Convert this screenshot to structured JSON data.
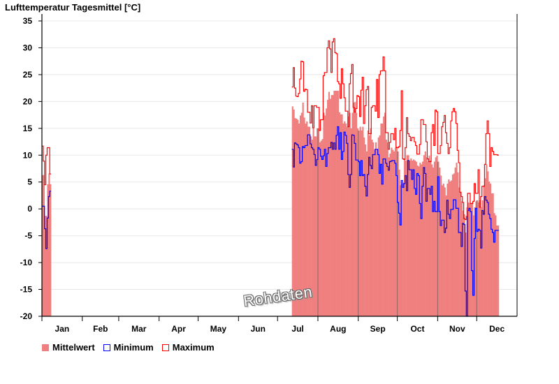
{
  "chart_data": {
    "type": "bar",
    "title": "Lufttemperatur Tagesmittel [°C]",
    "xlabel": "",
    "ylabel": "",
    "ylim": [
      -20,
      35
    ],
    "yticks": [
      35,
      30,
      25,
      20,
      15,
      10,
      5,
      0,
      -5,
      -10,
      -15,
      -20
    ],
    "grid": true,
    "months": [
      "Jan",
      "Feb",
      "Mar",
      "Apr",
      "May",
      "Jun",
      "Jul",
      "Aug",
      "Sep",
      "Oct",
      "Nov",
      "Dec"
    ],
    "month_lengths": [
      31,
      28,
      31,
      30,
      31,
      30,
      31,
      31,
      30,
      31,
      30,
      31
    ],
    "watermark": "Rohdaten",
    "legend_position": "bottom-left",
    "series": [
      {
        "name": "Mittelwert",
        "kind": "bar",
        "color": "#f08080",
        "segments": [
          {
            "start_day_of_year": 1,
            "values": [
              6.3,
              6.3,
              -1.3,
              -1.3,
              4.6,
              6.6,
              4.6
            ]
          },
          {
            "start_day_of_year": 193,
            "values": [
              19.1,
              18.5,
              16.9,
              16.8,
              16.6,
              15.9,
              17.4,
              17.9,
              19.8,
              17,
              15.9,
              16.3,
              15.3,
              15.3,
              13.5,
              12.9,
              15,
              13.5,
              13.5,
              15,
              15,
              12.4,
              12.7,
              13,
              17.9,
              17.4,
              18.7,
              20.3,
              21.8,
              20.5,
              21.2,
              21.2,
              22,
              22,
              22,
              22,
              18,
              17.6,
              17.6,
              15.9,
              16.3,
              15.9,
              15.3,
              17.2,
              17.9,
              15,
              17.9,
              19.8,
              19.9,
              17.9,
              15,
              14.6,
              15.3,
              14.6,
              15.3,
              13.3,
              12,
              10.7,
              14.6,
              13.7,
              15,
              12.9,
              12.4,
              11.1,
              12.4,
              11.1,
              13.3,
              13.7,
              15.9,
              15.9,
              17.2,
              17.9,
              12.9,
              12.4,
              9.6,
              10.3,
              11.4,
              11,
              10.7,
              11.4,
              11.6,
              10.7,
              7.3,
              4.4,
              4.7,
              4.9,
              9.4,
              9,
              10,
              10,
              9,
              9.4,
              9,
              9.2,
              9,
              8.8,
              8.1,
              7.9,
              8.6,
              8.3,
              8.8,
              10,
              10.7,
              9.6,
              8.8,
              9.9,
              9,
              8.3,
              7.7,
              8.8,
              9.6,
              9.9,
              8.8,
              7.7,
              6.2,
              4.4,
              4.7,
              4,
              2.5,
              4.7,
              5.5,
              5.1,
              5.3,
              6.4,
              6.6,
              7.7,
              8.6,
              6.8,
              4,
              3.1,
              1.4,
              -0.3,
              -1,
              -4.4,
              0.3,
              1.2,
              1,
              1,
              1.2,
              -1.2,
              0.3,
              1.4,
              1.6,
              1.2,
              1.6,
              0.3,
              1.6,
              4.4,
              5.7,
              8.3,
              7,
              5.1,
              4.7,
              2.9,
              2.9,
              -0.8,
              -1.2,
              -3.1,
              -3.1
            ]
          }
        ]
      },
      {
        "name": "Minimum",
        "kind": "step",
        "color": "#0000ff",
        "segments": [
          {
            "start_day_of_year": 1,
            "values": [
              0.5,
              0.5,
              -3.7,
              -7.4,
              -1.7,
              2.3,
              3.3
            ]
          },
          {
            "start_day_of_year": 193,
            "values": [
              11.1,
              7.8,
              12.3,
              12.1,
              11.9,
              11.4,
              8.5,
              8.8,
              11.6,
              11.4,
              11.8,
              11.8,
              13.8,
              13.8,
              12.1,
              11.4,
              11.1,
              10.1,
              8.1,
              9.2,
              11.4,
              11.1,
              9.8,
              9.2,
              9.9,
              11.1,
              7.9,
              10.3,
              11.4,
              11.4,
              12.4,
              11.1,
              12.3,
              11.1,
              13.7,
              15.3,
              11.1,
              14.2,
              9.2,
              10.7,
              14.3,
              13.7,
              12.2,
              6.4,
              4,
              6.4,
              13.8,
              13.7,
              12.2,
              9.1,
              9.1,
              8.8,
              6.2,
              9,
              6.2,
              6.4,
              4.2,
              2.4,
              6.4,
              9.6,
              8.1,
              7.5,
              10.1,
              10.1,
              11.1,
              11.1,
              10.1,
              6.6,
              8.3,
              4.6,
              9.3,
              9.3,
              8.5,
              7.9,
              7.2,
              8.8,
              8.9,
              9,
              9,
              8.5,
              6.2,
              1.2,
              -0.8,
              -3,
              5.3,
              4,
              4.7,
              6.2,
              3.4,
              9,
              7.3,
              7.3,
              5.5,
              7.3,
              3.8,
              2.7,
              6.6,
              6.2,
              1,
              -1.8,
              4.2,
              7.7,
              6.6,
              1.4,
              3.8,
              3.8,
              2.7,
              4.2,
              -0.5,
              1.4,
              -0.5,
              -0.5,
              6,
              -0.5,
              -3.1,
              -2.1,
              -2.1,
              -4.4,
              -3.6,
              1.6,
              -1,
              -1.8,
              -0.1,
              -0.1,
              1.7,
              1.7,
              0.1,
              0.1,
              -4.4,
              -4.4,
              -7,
              -2.7,
              -2.9,
              -15.3,
              -20,
              -0.3,
              0.1,
              -0.5,
              -11.5,
              -16.1,
              -5.5,
              0.1,
              -4.2,
              -3.8,
              -4,
              -7.3,
              -0.3,
              -1,
              2.3,
              1.6,
              1.2,
              -1,
              -1.8,
              -3.8,
              -4.4,
              -6.2,
              -4,
              -4,
              -4
            ]
          }
        ]
      },
      {
        "name": "Maximum",
        "kind": "step",
        "color": "#ff0000",
        "segments": [
          {
            "start_day_of_year": 1,
            "values": [
              11.7,
              8.9,
              4.5,
              10,
              11.4,
              11.4,
              6.5
            ]
          },
          {
            "start_day_of_year": 193,
            "values": [
              22.7,
              26.3,
              22.5,
              21,
              20.9,
              21.5,
              24.2,
              27.5,
              27.4,
              21.9,
              22.3,
              22.2,
              18,
              18,
              16,
              19.2,
              15.1,
              19.2,
              19.2,
              18.9,
              18.9,
              14.6,
              16.6,
              16.6,
              24.8,
              25.4,
              25.4,
              30,
              31.3,
              29.8,
              25.4,
              31.1,
              31.7,
              29.1,
              28.9,
              23.7,
              23.3,
              20.6,
              26.1,
              23.3,
              20.7,
              18.2,
              18.2,
              15.3,
              23.3,
              25.2,
              26.9,
              18.9,
              18,
              18.7,
              21.1,
              20.9,
              17.2,
              22.1,
              24.5,
              15.9,
              19.2,
              22.2,
              22.8,
              14,
              14,
              18.9,
              19.2,
              19.2,
              18.2,
              24.1,
              17,
              25,
              25.7,
              25.7,
              28.3,
              25.7,
              14.2,
              14.2,
              11.1,
              12.4,
              14,
              14,
              12.9,
              15,
              11.4,
              11.4,
              11.6,
              14.6,
              22,
              9.3,
              9.2,
              11.4,
              17,
              14,
              13.5,
              12.7,
              13.3,
              13.3,
              12.5,
              11.8,
              10.2,
              10.2,
              12,
              16.6,
              16.6,
              15.7,
              15.7,
              12.5,
              9.3,
              8.8,
              8.8,
              14.2,
              15.7,
              11.8,
              18.4,
              18.1,
              10.3,
              10.3,
              11.8,
              15.3,
              16.1,
              17.4,
              14.2,
              12.2,
              10.3,
              11.4,
              16.4,
              18.1,
              18.7,
              18.1,
              15.9,
              10.9,
              8.6,
              3.1,
              2.3,
              1.2,
              -1.8,
              -2,
              -1.4,
              2.9,
              2.9,
              1,
              1,
              1.4,
              4.7,
              2.9,
              2.9,
              7.3,
              0.3,
              2.3,
              4.2,
              4.2,
              8.3,
              14,
              16.4,
              14,
              7.9,
              11.4,
              10.7,
              10.1,
              10.1,
              10.1,
              10
            ]
          }
        ]
      }
    ]
  }
}
